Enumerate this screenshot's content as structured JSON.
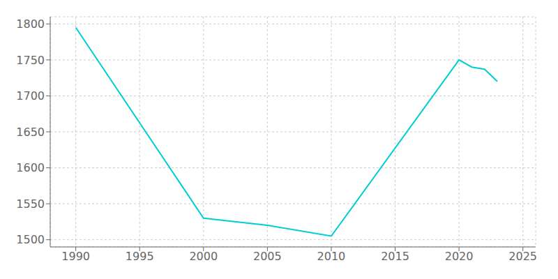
{
  "chart_data": {
    "type": "line",
    "x": [
      1990,
      2000,
      2005,
      2010,
      2020,
      2021,
      2022,
      2023
    ],
    "values": [
      1795,
      1530,
      1520,
      1505,
      1750,
      1740,
      1737,
      1720
    ],
    "color": "#00CED1",
    "xlim": [
      1988,
      2026
    ],
    "ylim": [
      1490,
      1810
    ],
    "xticks": [
      1990,
      1995,
      2000,
      2005,
      2010,
      2015,
      2020,
      2025
    ],
    "yticks": [
      1500,
      1550,
      1600,
      1650,
      1700,
      1750,
      1800
    ],
    "grid": true
  }
}
